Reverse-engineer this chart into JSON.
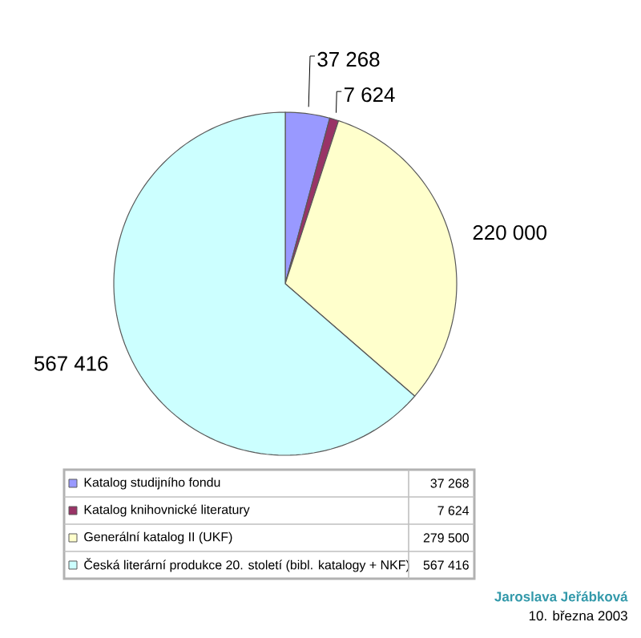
{
  "chart_data": {
    "type": "pie",
    "categories": [
      "Katalog studijního fondu",
      "Katalog knihovnické literatury",
      "Generální katalog II (UKF)",
      "Česká literární produkce 20. století (bibl. katalogy + NKF)"
    ],
    "values": [
      37268,
      7624,
      279500,
      567416
    ],
    "value_labels": [
      "37 268",
      "7 624",
      "279 500",
      "567 416"
    ],
    "colors": [
      "#9999ff",
      "#993366",
      "#ffffcc",
      "#ccffff"
    ],
    "legend": "bottom",
    "annotations": [
      {
        "text": "37 268",
        "x": "Katalog studijního fondu"
      },
      {
        "text": "7 624",
        "x": "Katalog knihovnické literatury"
      },
      {
        "text": "220 000",
        "x": "Generální katalog II (UKF)"
      },
      {
        "text": "567 416",
        "x": "Česká literární produkce 20. století (bibl. katalogy + NKF)"
      },
      "Jaroslava Jeřábková",
      "10. března 2003"
    ]
  }
}
